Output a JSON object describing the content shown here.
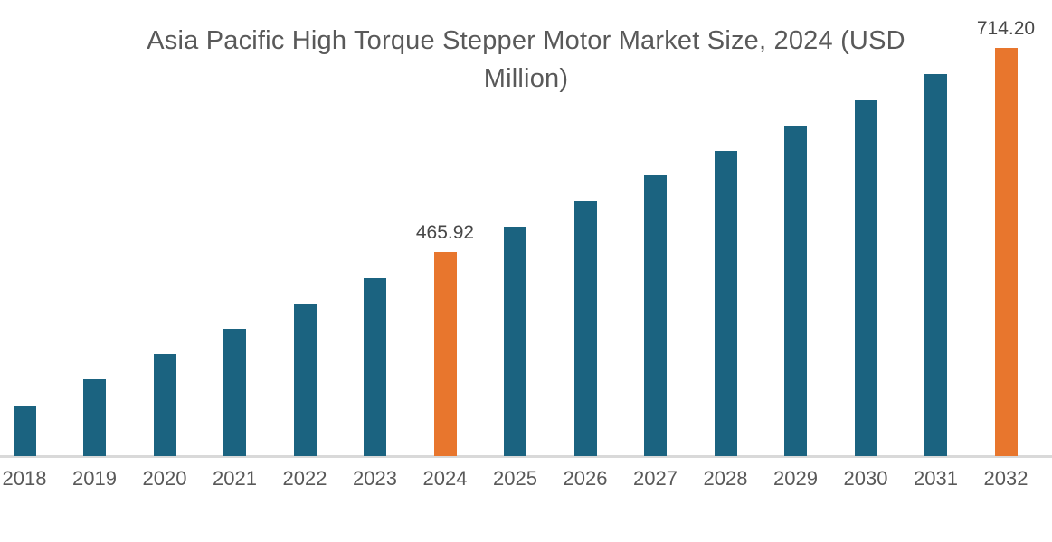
{
  "title": {
    "line1": "Asia Pacific High Torque Stepper Motor Market Size, 2024 (USD",
    "line2": "Million)"
  },
  "colors": {
    "bar_default": "#1b6380",
    "bar_highlight": "#e8762d",
    "axis_line": "#d9d9d9",
    "title_text": "#595959",
    "tick_text": "#595959",
    "data_label_text": "#474747",
    "background": "#ffffff"
  },
  "chart_data": {
    "type": "bar",
    "title": "Asia Pacific High Torque Stepper Motor Market Size, 2024 (USD Million)",
    "xlabel": "",
    "ylabel": "",
    "categories": [
      "2018",
      "2019",
      "2020",
      "2021",
      "2022",
      "2023",
      "2024",
      "2025",
      "2026",
      "2027",
      "2028",
      "2029",
      "2030",
      "2031",
      "2032"
    ],
    "values": [
      279.1,
      310.9,
      341.8,
      372.7,
      403.4,
      434.0,
      465.92,
      496.7,
      528.5,
      559.3,
      589.0,
      619.7,
      650.5,
      682.4,
      714.2
    ],
    "data_labels": {
      "2024": "465.92",
      "2032": "714.20"
    },
    "highlighted_categories": [
      "2024",
      "2032"
    ],
    "value_axis_visible": false,
    "grid": false,
    "legend": false,
    "ylim": [
      217.6,
      714.2
    ]
  }
}
